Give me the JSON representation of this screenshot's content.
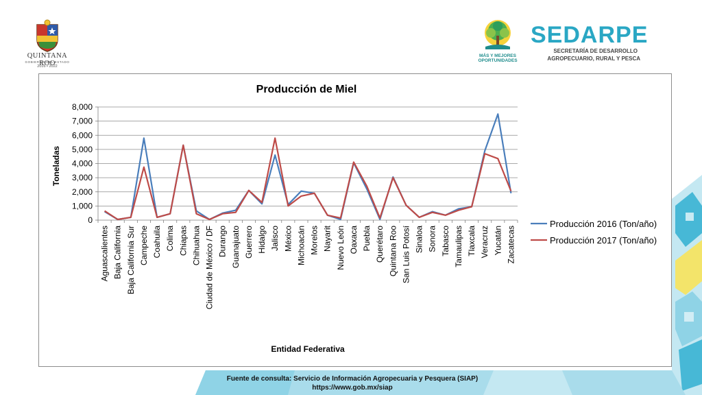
{
  "header": {
    "left_logo": {
      "name": "QUINTANA ROO",
      "subtitle": "GOBIERNO DEL ESTADO",
      "years": "2016 • 2022"
    },
    "tree_logo": {
      "line1": "MÁS Y MEJORES",
      "line2": "OPORTUNIDADES"
    },
    "sedarpe_logo": {
      "name": "SEDARPE",
      "line1": "SECRETARÍA DE DESARROLLO",
      "line2": "AGROPECUARIO, RURAL Y PESCA"
    }
  },
  "chart_data": {
    "type": "line",
    "title": "Producción de Miel",
    "xlabel": "Entidad Federativa",
    "ylabel": "Toneladas",
    "ylim": [
      0,
      8000
    ],
    "yticks": [
      0,
      1000,
      2000,
      3000,
      4000,
      5000,
      6000,
      7000,
      8000
    ],
    "ytick_labels": [
      "0",
      "1,000",
      "2,000",
      "3,000",
      "4,000",
      "5,000",
      "6,000",
      "7,000",
      "8,000"
    ],
    "grid": true,
    "legend_position": "right",
    "categories": [
      "Aguascalientes",
      "Baja California",
      "Baja California Sur",
      "Campeche",
      "Coahuila",
      "Colima",
      "Chiapas",
      "Chihuahua",
      "Ciudad de México / DF",
      "Durango",
      "Guanajuato",
      "Guerrero",
      "Hidalgo",
      "Jalisco",
      "México",
      "Michoacán",
      "Morelos",
      "Nayarit",
      "Nuevo León",
      "Oaxaca",
      "Puebla",
      "Querétaro",
      "Quintana Roo",
      "San Luis Potosí",
      "Sinaloa",
      "Sonora",
      "Tabasco",
      "Tamaulipas",
      "Tlaxcala",
      "Veracruz",
      "Yucatán",
      "Zacatecas"
    ],
    "series": [
      {
        "name": "Producción 2016 (Ton/año)",
        "color": "#4a7ebb",
        "values": [
          600,
          50,
          200,
          5800,
          200,
          450,
          5300,
          650,
          50,
          500,
          700,
          2100,
          1150,
          4600,
          1100,
          2050,
          1900,
          350,
          50,
          4050,
          2200,
          50,
          3050,
          1050,
          200,
          600,
          350,
          800,
          950,
          4900,
          7500,
          1900
        ]
      },
      {
        "name": "Producción 2017 (Ton/año)",
        "color": "#be4b48",
        "values": [
          650,
          50,
          200,
          3750,
          200,
          450,
          5300,
          450,
          50,
          450,
          550,
          2100,
          1250,
          5800,
          1000,
          1700,
          1900,
          350,
          150,
          4100,
          2400,
          150,
          3000,
          1050,
          200,
          550,
          350,
          700,
          950,
          4700,
          4350,
          2050
        ]
      }
    ]
  },
  "footer": {
    "source_line": "Fuente de consulta: Servicio de Información Agropecuaria y Pesquera (SIAP)",
    "url": "https://www.gob.mx/siap"
  },
  "colors": {
    "accent": "#2aa7c4",
    "deco_light": "#a9dceb",
    "deco_mid": "#47b8d6",
    "deco_yellow": "#f3e46a"
  }
}
